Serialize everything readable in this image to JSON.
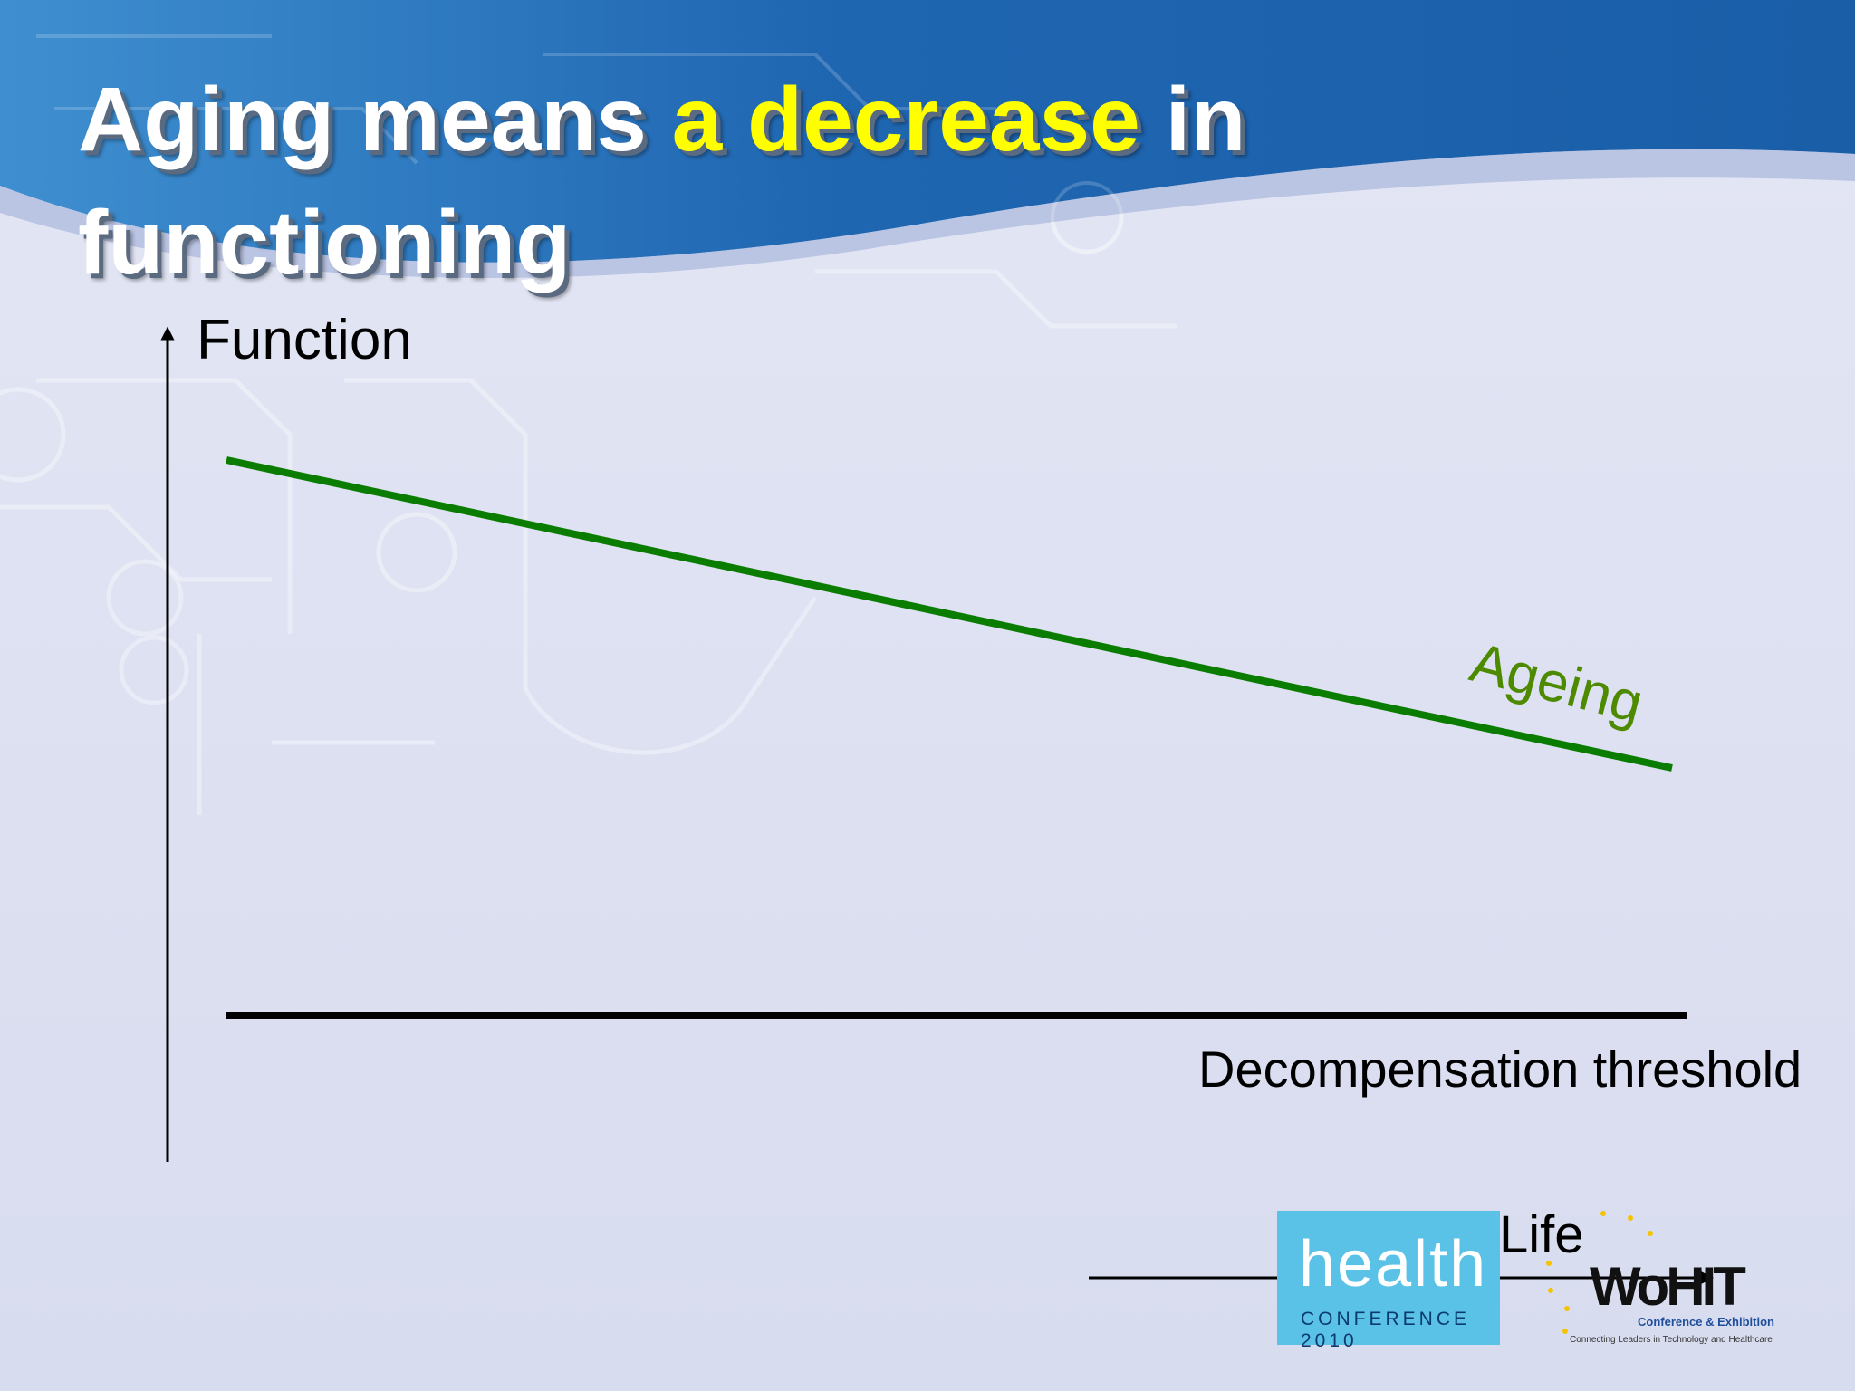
{
  "slide": {
    "title": {
      "line1_before": "Aging means ",
      "line1_highlight": "a decrease",
      "line1_after": " in",
      "line2": "functioning"
    },
    "colors": {
      "header_blue": "#1b5fa8",
      "title_text": "#ffffff",
      "title_highlight": "#ffff00",
      "background": "#dcdff0",
      "ageing_line": "#0a7d00",
      "ageing_label": "#4d8a00",
      "threshold_line": "#000000"
    }
  },
  "diagram": {
    "y_axis_label": "Function",
    "ageing_label": "Ageing",
    "threshold_label": "Decompensation threshold"
  },
  "logos": {
    "health_word": "health",
    "health_sub": "CONFERENCE 2010",
    "life": "Life",
    "wohit": "WoHIT",
    "wohit_sub1": "Conference & Exhibition",
    "wohit_sub2": "Connecting Leaders in Technology and Healthcare"
  }
}
